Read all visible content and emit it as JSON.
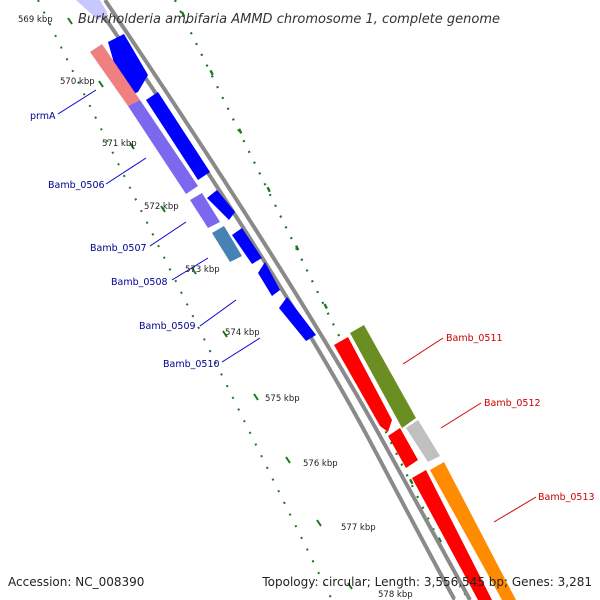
{
  "title": "Burkholderia ambifaria AMMD chromosome 1, complete genome",
  "footer": {
    "accession": "Accession: NC_008390",
    "topology": "Topology: circular; Length: 3,556,545 bp; Genes: 3,281"
  },
  "colors": {
    "forward_gene": "#0000ff",
    "cds_purple": "#7b68ee",
    "reverse_gene": "#ff0000",
    "backbone": "#8a8a8a",
    "gc_skew": "#1a7a1a",
    "label_forward": "#00008b",
    "label_reverse": "#cc0000"
  },
  "scale_labels": [
    "569 kbp",
    "570 kbp",
    "571 kbp",
    "572 kbp",
    "573 kbp",
    "574 kbp",
    "575 kbp",
    "576 kbp",
    "577 kbp",
    "578 kbp"
  ],
  "gene_labels": [
    {
      "text": "prmA",
      "strand": "forward"
    },
    {
      "text": "Bamb_0506",
      "strand": "forward"
    },
    {
      "text": "Bamb_0507",
      "strand": "forward"
    },
    {
      "text": "Bamb_0508",
      "strand": "forward"
    },
    {
      "text": "Bamb_0509",
      "strand": "forward"
    },
    {
      "text": "Bamb_0510",
      "strand": "forward"
    },
    {
      "text": "Bamb_0511",
      "strand": "reverse"
    },
    {
      "text": "Bamb_0512",
      "strand": "reverse"
    },
    {
      "text": "Bamb_0513",
      "strand": "reverse"
    }
  ]
}
